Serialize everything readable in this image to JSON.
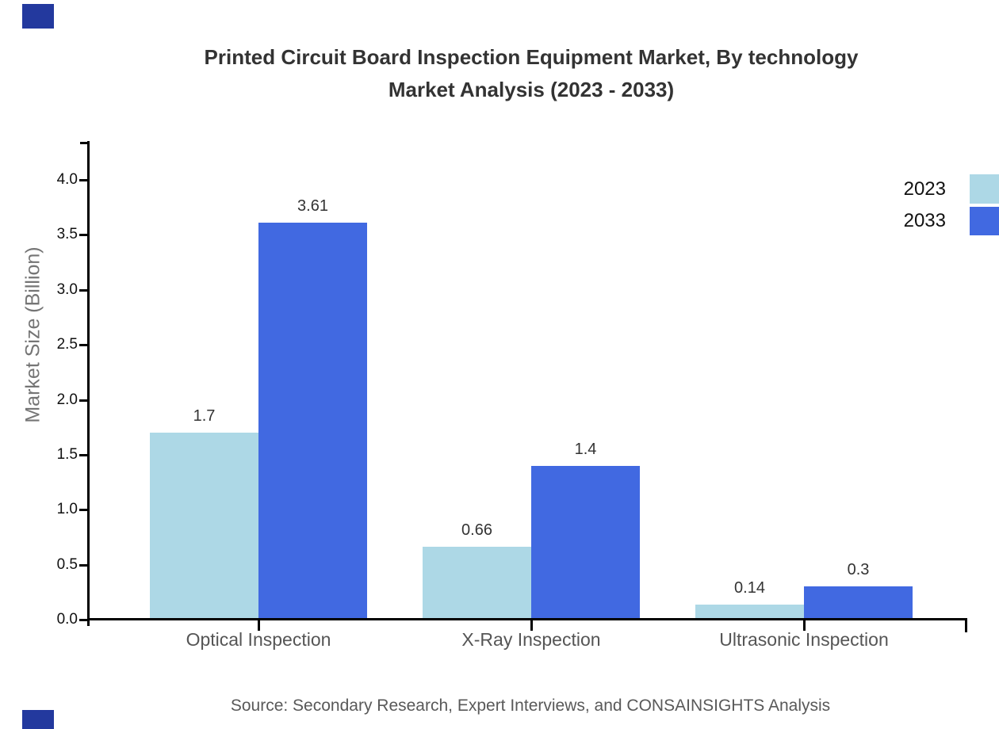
{
  "title": {
    "line1": "Printed Circuit Board Inspection Equipment Market, By technology",
    "line2": "Market Analysis (2023 - 2033)"
  },
  "source_note": "Source: Secondary Research, Expert Interviews, and CONSAINSIGHTS Analysis",
  "chart_data": {
    "type": "bar",
    "title": "Printed Circuit Board Inspection Equipment Market, By technology Market Analysis (2023 - 2033)",
    "categories": [
      "Optical Inspection",
      "X-Ray Inspection",
      "Ultrasonic Inspection"
    ],
    "series": [
      {
        "name": "2023",
        "color": "#ADD8E6",
        "values": [
          1.7,
          0.66,
          0.14
        ]
      },
      {
        "name": "2033",
        "color": "#4169E1",
        "values": [
          3.61,
          1.4,
          0.3
        ]
      }
    ],
    "ylabel": "Market Size (Billion)",
    "xlabel": "",
    "ylim": [
      0.0,
      4.0
    ],
    "y_tick_step": 0.5,
    "y_ticks": [
      "0.0",
      "0.5",
      "1.0",
      "1.5",
      "2.0",
      "2.5",
      "3.0",
      "3.5",
      "4.0"
    ],
    "grid": false,
    "legend_position": "top-right",
    "value_labels_shown": true
  },
  "colors": {
    "series_2023": "#ADD8E6",
    "series_2033": "#4169E1",
    "corner_accent": "#23399E",
    "title_text": "#333333",
    "tick_text": "#111111",
    "category_text": "#555555",
    "muted_text": "#595959"
  }
}
